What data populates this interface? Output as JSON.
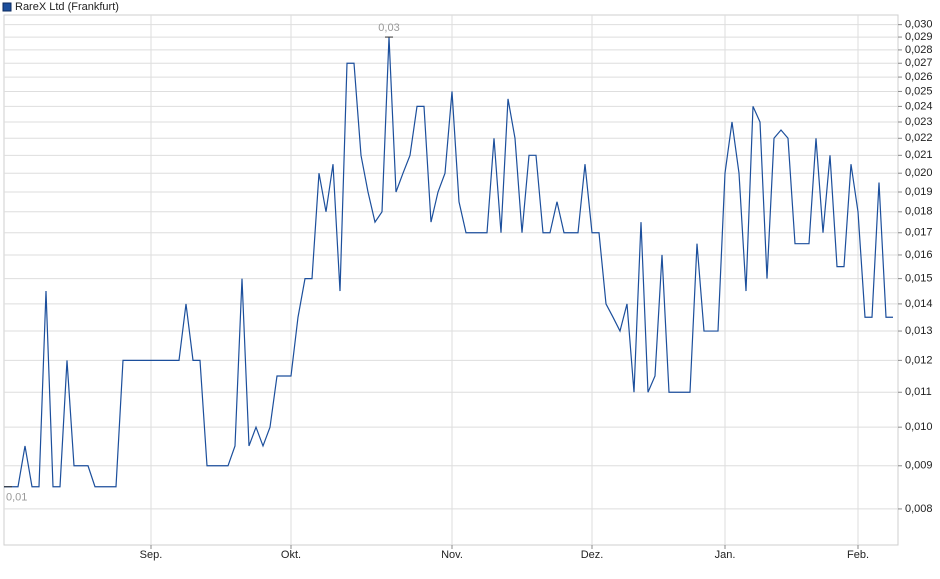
{
  "chart_data": {
    "type": "line",
    "log_scale": true,
    "grid": true,
    "series": [
      {
        "name": "RareX Ltd (Frankfurt)",
        "color": "#1c4f9c",
        "values": [
          0.0085,
          0.0085,
          0.0085,
          0.0095,
          0.0085,
          0.0085,
          0.0145,
          0.0085,
          0.0085,
          0.012,
          0.009,
          0.009,
          0.009,
          0.0085,
          0.0085,
          0.0085,
          0.0085,
          0.012,
          0.012,
          0.012,
          0.012,
          0.012,
          0.012,
          0.012,
          0.012,
          0.012,
          0.014,
          0.012,
          0.012,
          0.009,
          0.009,
          0.009,
          0.009,
          0.0095,
          0.015,
          0.0095,
          0.01,
          0.0095,
          0.01,
          0.0115,
          0.0115,
          0.0115,
          0.0135,
          0.015,
          0.015,
          0.02,
          0.018,
          0.0205,
          0.0145,
          0.027,
          0.027,
          0.021,
          0.019,
          0.0175,
          0.018,
          0.029,
          0.019,
          0.02,
          0.021,
          0.024,
          0.024,
          0.0175,
          0.019,
          0.02,
          0.025,
          0.0185,
          0.017,
          0.017,
          0.017,
          0.017,
          0.022,
          0.017,
          0.0245,
          0.022,
          0.017,
          0.021,
          0.021,
          0.017,
          0.017,
          0.0185,
          0.017,
          0.017,
          0.017,
          0.0205,
          0.017,
          0.017,
          0.014,
          0.0135,
          0.013,
          0.014,
          0.011,
          0.0175,
          0.011,
          0.0115,
          0.016,
          0.011,
          0.011,
          0.011,
          0.011,
          0.0165,
          0.013,
          0.013,
          0.013,
          0.02,
          0.023,
          0.02,
          0.0145,
          0.024,
          0.023,
          0.015,
          0.022,
          0.0225,
          0.022,
          0.0165,
          0.0165,
          0.0165,
          0.022,
          0.017,
          0.021,
          0.0155,
          0.0155,
          0.0205,
          0.018,
          0.0135,
          0.0135,
          0.0195,
          0.0135,
          0.0135
        ]
      }
    ],
    "categories": [
      null,
      null,
      null,
      null,
      null,
      null,
      null,
      null,
      null,
      null,
      null,
      null,
      null,
      null,
      null,
      null,
      null,
      null,
      null,
      null,
      null,
      "Sep.",
      null,
      null,
      null,
      null,
      null,
      null,
      null,
      null,
      null,
      null,
      null,
      null,
      null,
      null,
      null,
      null,
      null,
      null,
      null,
      "Okt.",
      null,
      null,
      null,
      null,
      null,
      null,
      null,
      null,
      null,
      null,
      null,
      null,
      null,
      null,
      null,
      null,
      null,
      null,
      null,
      null,
      null,
      null,
      "Nov.",
      null,
      null,
      null,
      null,
      null,
      null,
      null,
      null,
      null,
      null,
      null,
      null,
      null,
      null,
      null,
      null,
      null,
      null,
      null,
      "Dez.",
      null,
      null,
      null,
      null,
      null,
      null,
      null,
      null,
      null,
      null,
      null,
      null,
      null,
      null,
      null,
      null,
      null,
      null,
      "Jan.",
      null,
      null,
      null,
      null,
      null,
      null,
      null,
      null,
      null,
      null,
      null,
      null,
      null,
      null,
      null,
      null,
      null,
      null,
      "Feb.",
      null,
      null,
      null,
      null,
      null
    ],
    "max_label": "0,03",
    "min_label": "0,01",
    "ylim": [
      0.00725,
      0.0308
    ],
    "yticks": [
      {
        "value": 0.008,
        "label": "0,008"
      },
      {
        "value": 0.009,
        "label": "0,009"
      },
      {
        "value": 0.01,
        "label": "0,010"
      },
      {
        "value": 0.011,
        "label": "0,011"
      },
      {
        "value": 0.012,
        "label": "0,012"
      },
      {
        "value": 0.013,
        "label": "0,013"
      },
      {
        "value": 0.014,
        "label": "0,014"
      },
      {
        "value": 0.015,
        "label": "0,015"
      },
      {
        "value": 0.016,
        "label": "0,016"
      },
      {
        "value": 0.017,
        "label": "0,017"
      },
      {
        "value": 0.018,
        "label": "0,018"
      },
      {
        "value": 0.019,
        "label": "0,019"
      },
      {
        "value": 0.02,
        "label": "0,020"
      },
      {
        "value": 0.021,
        "label": "0,021"
      },
      {
        "value": 0.022,
        "label": "0,022"
      },
      {
        "value": 0.023,
        "label": "0,023"
      },
      {
        "value": 0.024,
        "label": "0,024"
      },
      {
        "value": 0.025,
        "label": "0,025"
      },
      {
        "value": 0.026,
        "label": "0,026"
      },
      {
        "value": 0.027,
        "label": "0,027"
      },
      {
        "value": 0.028,
        "label": "0,028"
      },
      {
        "value": 0.029,
        "label": "0,029"
      },
      {
        "value": 0.03,
        "label": "0,030"
      }
    ]
  }
}
